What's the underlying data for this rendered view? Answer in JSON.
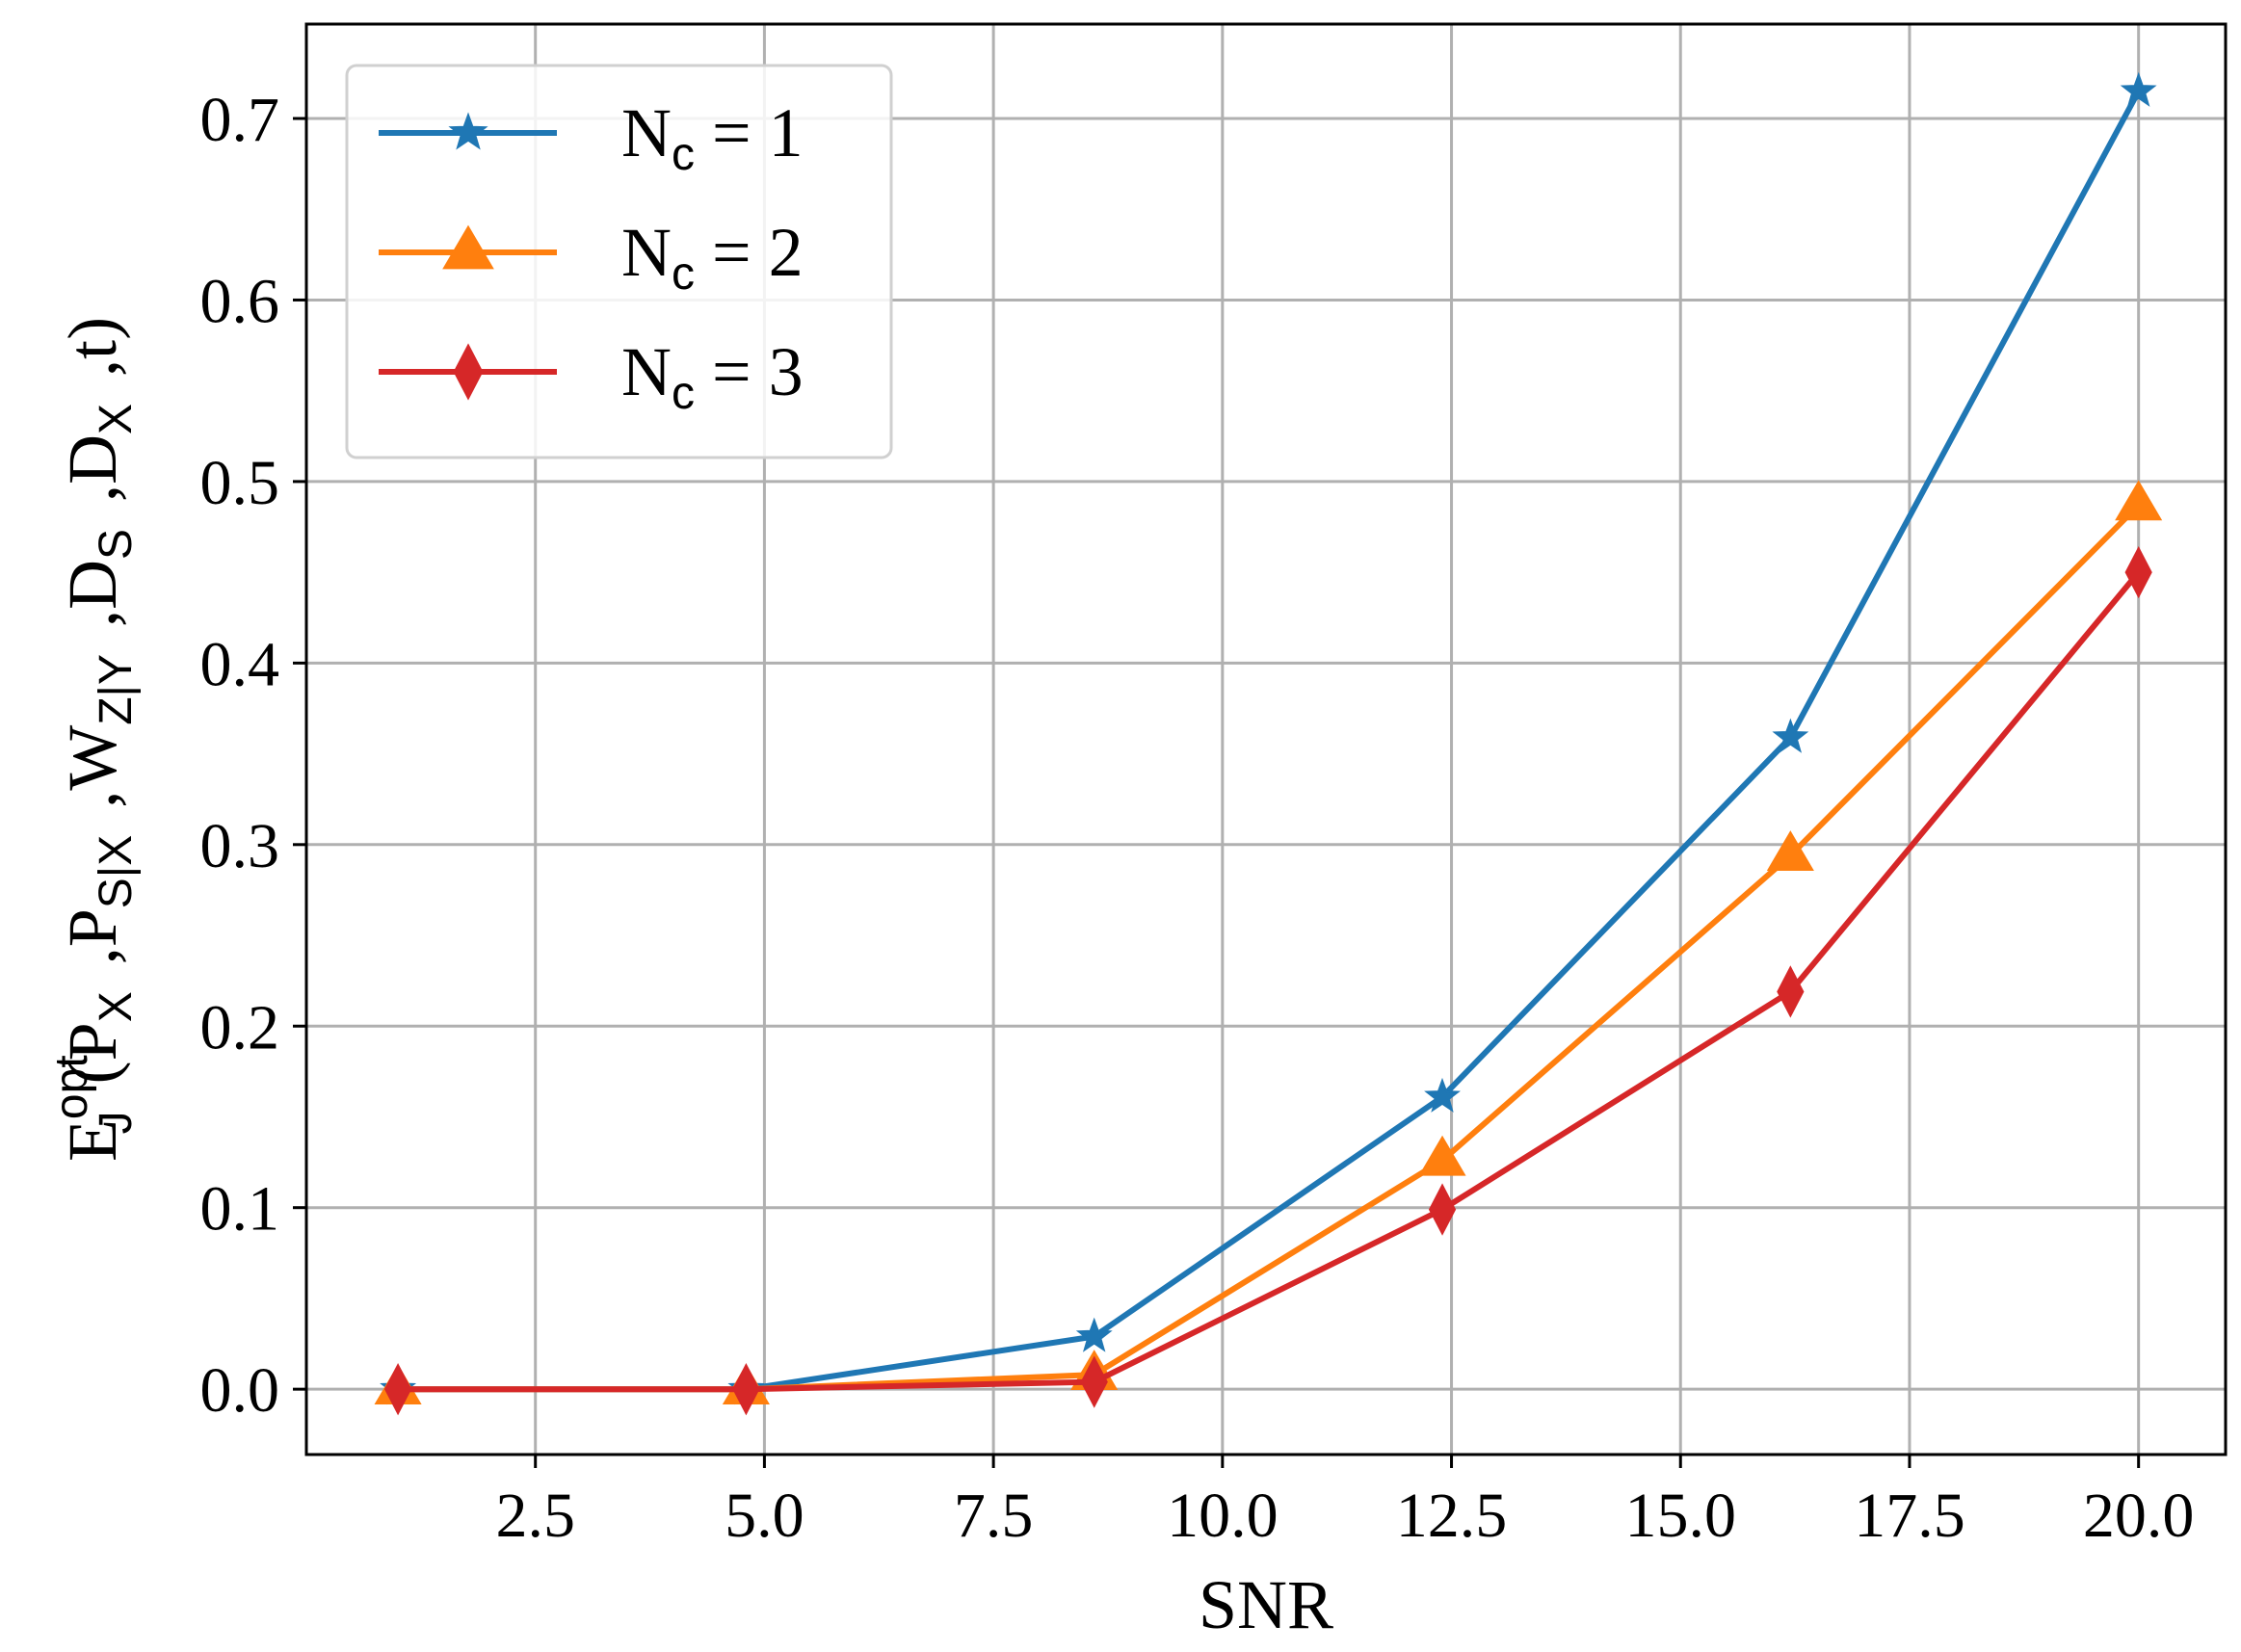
{
  "chart_data": {
    "type": "line",
    "xlabel": "SNR",
    "ylabel": {
      "main": "E",
      "sup": "opt",
      "sub": "J",
      "args": [
        {
          "main": "(P",
          "sub": "X"
        },
        {
          "main": ",P",
          "sub": "S|X"
        },
        {
          "main": ",W",
          "sub": "Z|Y"
        },
        {
          "main": ",D",
          "sub": "S"
        },
        {
          "main": ",D",
          "sub": "X"
        },
        {
          "main": ",t)",
          "sub": ""
        }
      ]
    },
    "xlim": [
      0.0,
      20.95
    ],
    "ylim": [
      -0.036,
      0.752
    ],
    "xticks": [
      2.5,
      5.0,
      7.5,
      10.0,
      12.5,
      15.0,
      17.5,
      20.0
    ],
    "xtick_labels": [
      "2.5",
      "5.0",
      "7.5",
      "10.0",
      "12.5",
      "15.0",
      "17.5",
      "20.0"
    ],
    "yticks": [
      0.0,
      0.1,
      0.2,
      0.3,
      0.4,
      0.5,
      0.6,
      0.7
    ],
    "ytick_labels": [
      "0.0",
      "0.1",
      "0.2",
      "0.3",
      "0.4",
      "0.5",
      "0.6",
      "0.7"
    ],
    "grid": true,
    "legend_position": "top-left",
    "x": [
      1.0,
      4.8,
      8.6,
      12.4,
      16.2,
      20.0
    ],
    "series": [
      {
        "name": {
          "main": "N",
          "sub": "c",
          "rest": " = 1"
        },
        "color": "#1f77b4",
        "marker": "star",
        "values": [
          0.0,
          0.0,
          0.029,
          0.161,
          0.359,
          0.715
        ]
      },
      {
        "name": {
          "main": "N",
          "sub": "c",
          "rest": " = 2"
        },
        "color": "#ff7f0e",
        "marker": "triangle",
        "values": [
          0.0,
          0.0,
          0.008,
          0.126,
          0.294,
          0.487
        ]
      },
      {
        "name": {
          "main": "N",
          "sub": "c",
          "rest": " = 3"
        },
        "color": "#d62728",
        "marker": "diamond",
        "values": [
          0.0,
          0.0,
          0.004,
          0.099,
          0.219,
          0.45
        ]
      }
    ]
  }
}
